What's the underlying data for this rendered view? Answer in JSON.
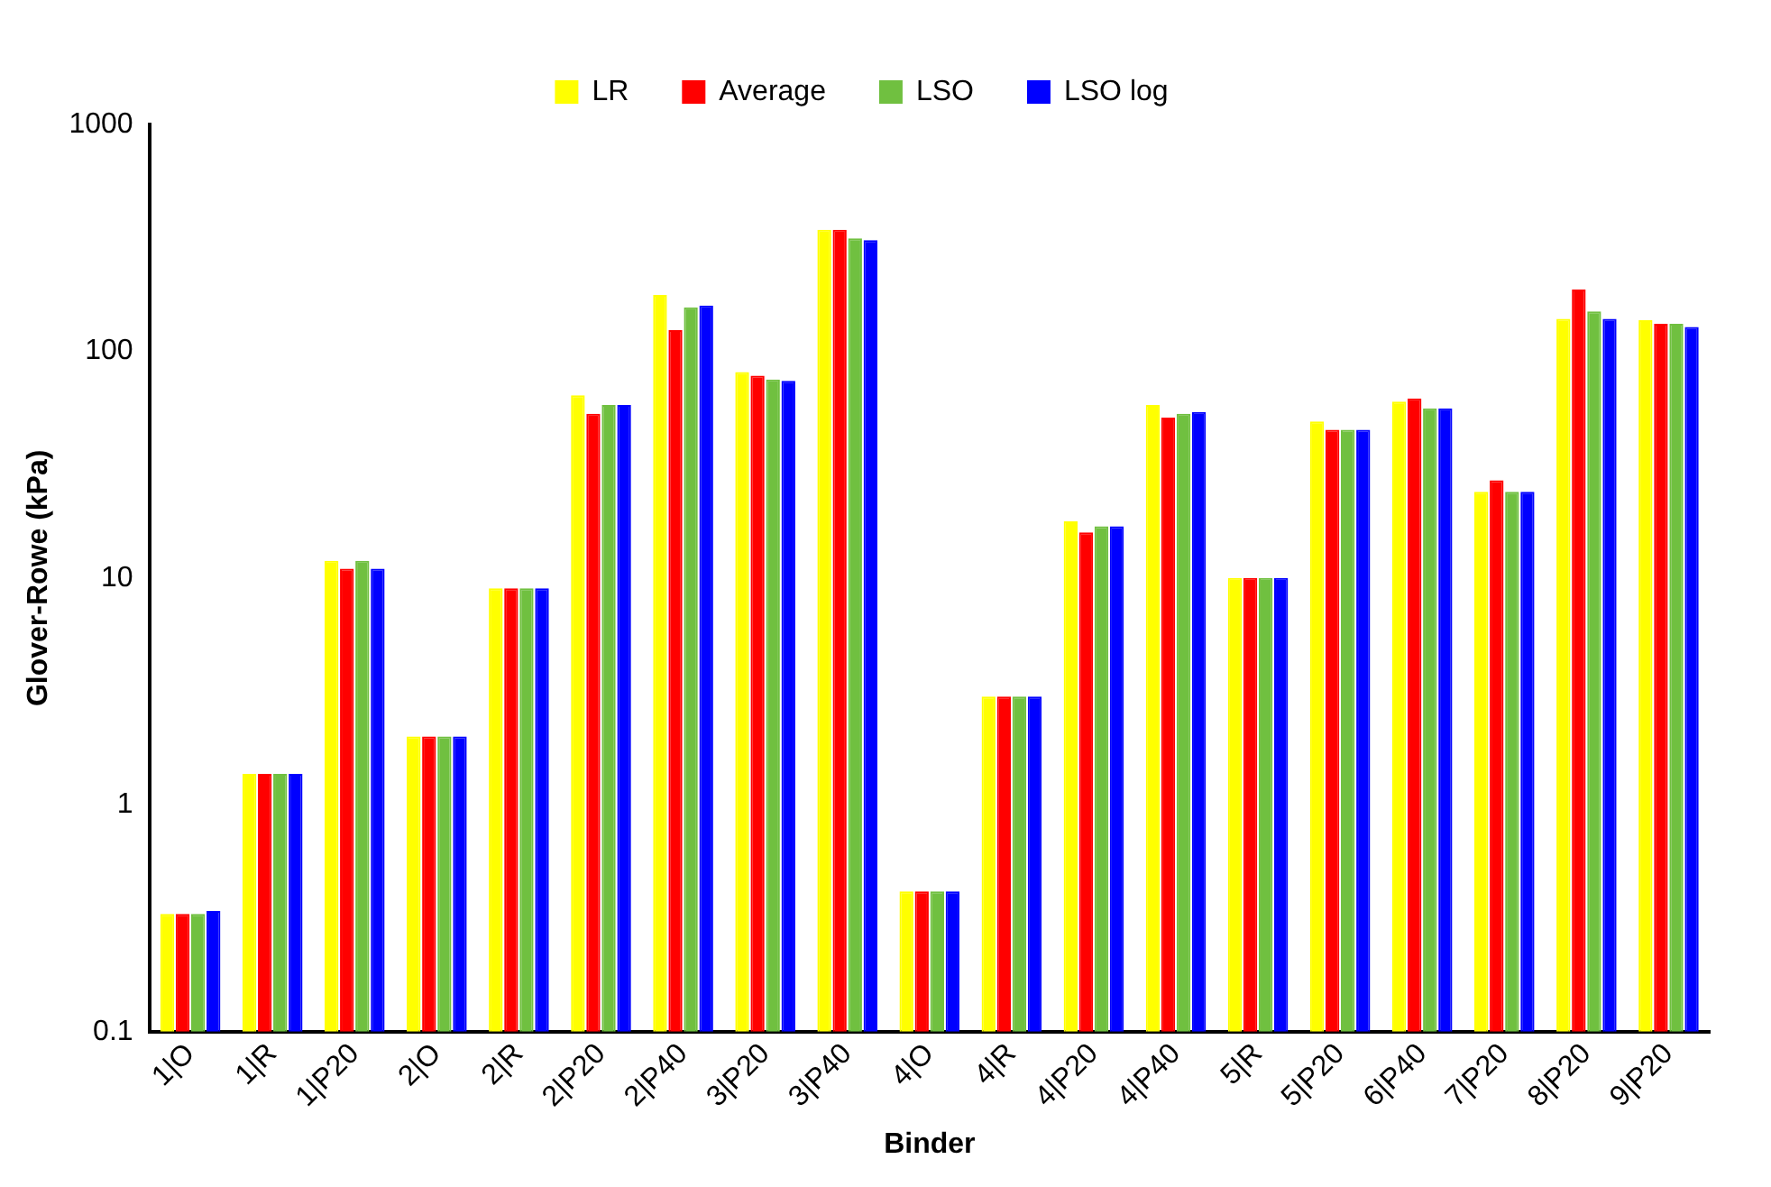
{
  "chart_data": {
    "type": "bar",
    "xlabel": "Binder",
    "ylabel": "Glover-Rowe (kPa)",
    "categories": [
      "1|O",
      "1|R",
      "1|P20",
      "2|O",
      "2|R",
      "2|P20",
      "2|P40",
      "3|P20",
      "3|P40",
      "4|O",
      "4|R",
      "4|P20",
      "4|P40",
      "5|R",
      "5|P20",
      "6|P40",
      "7|P20",
      "8|P20",
      "9|P20"
    ],
    "series": [
      {
        "name": "LR",
        "color": "#ffff00",
        "values": [
          0.33,
          1.37,
          11.9,
          2.0,
          9.0,
          64,
          177,
          81,
          343,
          0.415,
          3.0,
          17.8,
          58,
          10,
          49,
          60,
          24,
          139,
          137
        ]
      },
      {
        "name": "Average",
        "color": "#ff0000",
        "values": [
          0.33,
          1.37,
          11.0,
          2.0,
          9.0,
          53,
          124,
          78,
          343,
          0.415,
          3.0,
          15.9,
          51,
          10,
          45,
          62,
          27,
          187,
          132
        ]
      },
      {
        "name": "LSO",
        "color": "#70c040",
        "values": [
          0.33,
          1.37,
          11.9,
          2.0,
          9.0,
          58,
          156,
          75,
          315,
          0.415,
          3.0,
          16.9,
          53,
          10,
          45,
          56,
          24,
          150,
          132
        ]
      },
      {
        "name": "LSO log",
        "color": "#0000ff",
        "values": [
          0.34,
          1.37,
          11.0,
          2.0,
          9.0,
          58,
          159,
          74,
          309,
          0.415,
          3.0,
          16.9,
          54,
          10,
          45,
          56,
          24,
          139,
          128
        ]
      }
    ],
    "log": "y",
    "ylim": [
      0.1,
      1000
    ],
    "yticks": [
      0.1,
      1,
      10,
      100,
      1000
    ],
    "grid": false,
    "legend": "top"
  }
}
